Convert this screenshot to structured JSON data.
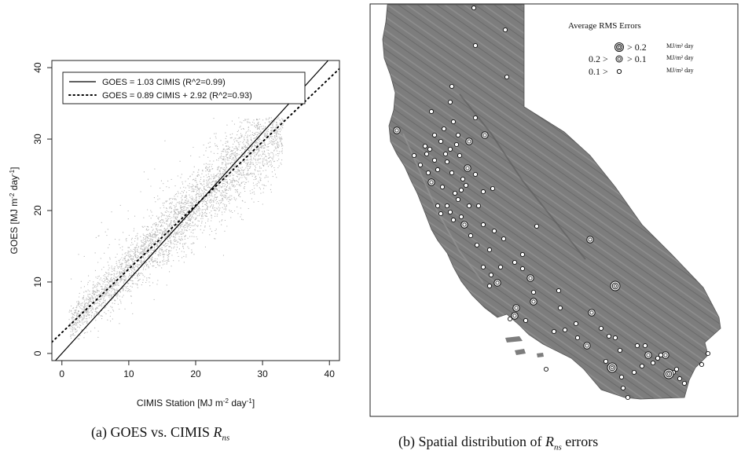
{
  "chart_data": [
    {
      "type": "scatter",
      "panel_label": "(a)",
      "caption_text": "GOES vs. CIMIS",
      "caption_var": "R",
      "caption_sub": "ns",
      "xlabel": "CIMIS Station [MJ m",
      "xlabel_sup": "-2",
      "xlabel_mid": " day",
      "xlabel_sup2": "-1",
      "xlabel_end": "]",
      "ylabel": "GOES [MJ m",
      "ylabel_sup": "-2",
      "ylabel_mid": " day",
      "ylabel_sup2": "-1",
      "ylabel_end": "]",
      "xlim": [
        -1.5,
        41.5
      ],
      "ylim": [
        -1,
        41
      ],
      "xticks": [
        "0",
        "10",
        "20",
        "30",
        "40"
      ],
      "yticks": [
        "0",
        "10",
        "20",
        "30",
        "40"
      ],
      "grid": false,
      "legend_position": "top-left",
      "series": [
        {
          "name": "GOES = 1.03 CIMIS (R^2=0.99)",
          "kind": "line",
          "style": "solid",
          "slope": 1.03,
          "intercept": 0
        },
        {
          "name": "GOES = 0.89 CIMIS + 2.92 (R^2=0.93)",
          "kind": "line",
          "style": "dotted",
          "slope": 0.89,
          "intercept": 2.92
        }
      ],
      "point_cloud": {
        "color": "#b8b8b8",
        "x_range": [
          1,
          33
        ],
        "trend_slope": 0.89,
        "trend_intercept": 2.92
      }
    },
    {
      "type": "map",
      "panel_label": "(b)",
      "caption_text": "Spatial distribution of",
      "caption_var": "R",
      "caption_sub": "ns",
      "caption_end": "errors",
      "legend": {
        "title": "Average RMS Errors",
        "entries": [
          {
            "prefix": "",
            "symbol": "triple",
            "range": "> 0.2",
            "unit": "MJ/m² day"
          },
          {
            "prefix": "0.2 >",
            "symbol": "double",
            "range": "> 0.1",
            "unit": "MJ/m² day"
          },
          {
            "prefix": "0.1 >",
            "symbol": "single",
            "range": "",
            "unit": "MJ/m² day"
          }
        ]
      },
      "colors": {
        "terrain": "#7d7d7d",
        "terrain_dark": "#5e5e5e",
        "marker_fill": "#ffffff",
        "marker_stroke": "#111111"
      }
    }
  ]
}
